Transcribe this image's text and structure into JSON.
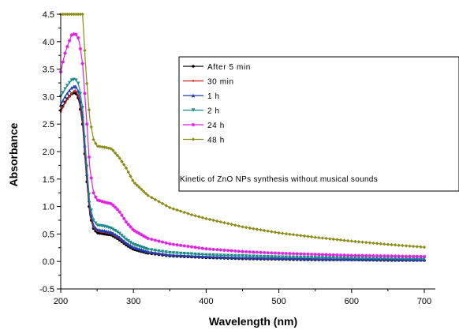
{
  "chart_data": {
    "type": "line",
    "xlabel": "Wavelength (nm)",
    "ylabel": "Absorbance",
    "xlim": [
      200,
      700
    ],
    "ylim": [
      -0.5,
      4.5
    ],
    "xticks": [
      200,
      300,
      400,
      500,
      600,
      700
    ],
    "yticks": [
      -0.5,
      0.0,
      0.5,
      1.0,
      1.5,
      2.0,
      2.5,
      3.0,
      3.5,
      4.0,
      4.5
    ],
    "annotation": "Kinetic of ZnO NPs synthesis without musical sounds",
    "legend_position": "top-right",
    "grid": false,
    "series": [
      {
        "name": "After 5 min",
        "color": "#000000",
        "marker": "circle",
        "x": [
          200,
          205,
          210,
          215,
          220,
          225,
          230,
          235,
          240,
          245,
          250,
          260,
          270,
          280,
          290,
          300,
          320,
          350,
          400,
          450,
          500,
          550,
          600,
          650,
          700
        ],
        "y": [
          2.75,
          2.88,
          2.98,
          3.05,
          3.08,
          2.95,
          2.5,
          1.6,
          0.85,
          0.6,
          0.52,
          0.5,
          0.48,
          0.4,
          0.3,
          0.22,
          0.15,
          0.1,
          0.07,
          0.05,
          0.04,
          0.03,
          0.03,
          0.02,
          0.02
        ]
      },
      {
        "name": "30 min",
        "color": "#d21e1e",
        "marker": "dot",
        "x": [
          200,
          205,
          210,
          215,
          220,
          225,
          230,
          235,
          240,
          245,
          250,
          260,
          270,
          280,
          290,
          300,
          320,
          350,
          400,
          450,
          500,
          550,
          600,
          650,
          700
        ],
        "y": [
          2.72,
          2.86,
          2.97,
          3.06,
          3.12,
          3.0,
          2.55,
          1.65,
          0.9,
          0.62,
          0.55,
          0.53,
          0.5,
          0.42,
          0.32,
          0.24,
          0.16,
          0.11,
          0.08,
          0.06,
          0.05,
          0.04,
          0.04,
          0.03,
          0.03
        ]
      },
      {
        "name": "1 h",
        "color": "#1f3db5",
        "marker": "triangle",
        "x": [
          200,
          205,
          210,
          215,
          220,
          225,
          230,
          235,
          240,
          245,
          250,
          260,
          270,
          280,
          290,
          300,
          320,
          350,
          400,
          450,
          500,
          550,
          600,
          650,
          700
        ],
        "y": [
          2.85,
          2.98,
          3.08,
          3.16,
          3.2,
          3.08,
          2.65,
          1.75,
          0.95,
          0.66,
          0.58,
          0.56,
          0.53,
          0.45,
          0.34,
          0.26,
          0.18,
          0.12,
          0.09,
          0.07,
          0.06,
          0.05,
          0.04,
          0.04,
          0.03
        ]
      },
      {
        "name": "2 h",
        "color": "#1a8a8a",
        "marker": "triangle-down",
        "x": [
          200,
          205,
          210,
          215,
          220,
          225,
          230,
          235,
          240,
          245,
          250,
          260,
          270,
          280,
          290,
          300,
          320,
          350,
          400,
          450,
          500,
          550,
          600,
          650,
          700
        ],
        "y": [
          3.0,
          3.12,
          3.22,
          3.3,
          3.32,
          3.22,
          2.8,
          1.9,
          1.05,
          0.75,
          0.66,
          0.64,
          0.6,
          0.52,
          0.4,
          0.31,
          0.22,
          0.16,
          0.12,
          0.1,
          0.08,
          0.07,
          0.06,
          0.05,
          0.05
        ]
      },
      {
        "name": "24 h",
        "color": "#e020e0",
        "marker": "star",
        "x": [
          200,
          205,
          210,
          215,
          220,
          225,
          230,
          235,
          240,
          245,
          250,
          260,
          270,
          280,
          290,
          300,
          320,
          350,
          400,
          450,
          500,
          550,
          600,
          650,
          700
        ],
        "y": [
          3.45,
          3.75,
          3.95,
          4.12,
          4.15,
          4.05,
          3.6,
          2.7,
          1.7,
          1.25,
          1.12,
          1.08,
          1.05,
          0.92,
          0.72,
          0.57,
          0.42,
          0.32,
          0.23,
          0.18,
          0.15,
          0.13,
          0.11,
          0.1,
          0.09
        ]
      },
      {
        "name": "48 h",
        "color": "#8c8c14",
        "marker": "diamond",
        "x": [
          200,
          203,
          206,
          210,
          215,
          220,
          225,
          230,
          235,
          240,
          245,
          250,
          260,
          270,
          280,
          290,
          300,
          320,
          350,
          380,
          400,
          450,
          500,
          550,
          600,
          650,
          700
        ],
        "y": [
          4.5,
          4.5,
          4.5,
          4.5,
          4.5,
          4.5,
          4.5,
          4.5,
          3.4,
          2.6,
          2.22,
          2.1,
          2.08,
          2.05,
          1.9,
          1.7,
          1.45,
          1.2,
          0.98,
          0.85,
          0.78,
          0.63,
          0.52,
          0.44,
          0.37,
          0.31,
          0.26
        ]
      }
    ]
  }
}
